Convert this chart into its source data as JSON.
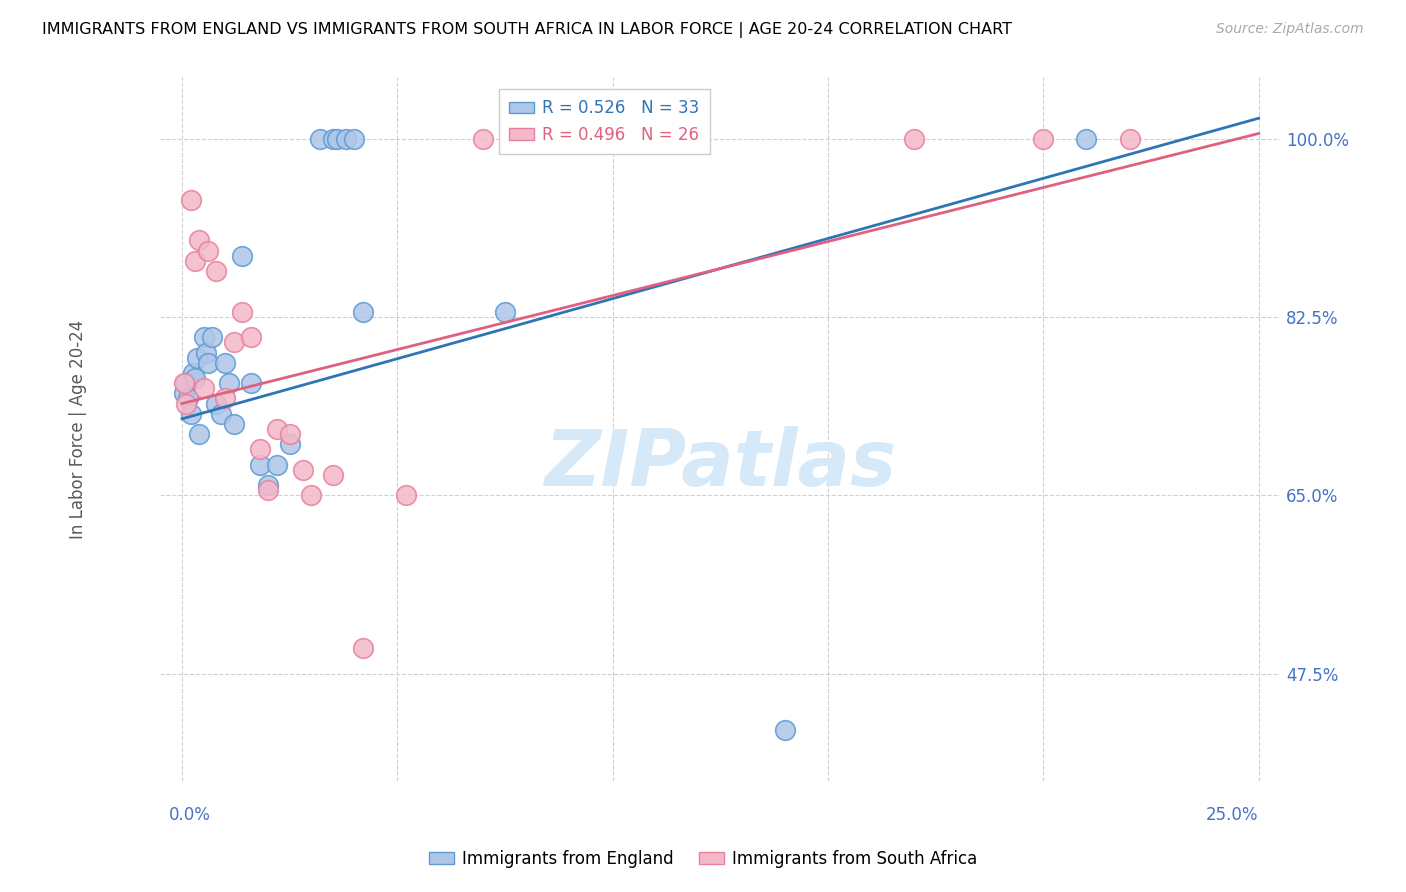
{
  "title": "IMMIGRANTS FROM ENGLAND VS IMMIGRANTS FROM SOUTH AFRICA IN LABOR FORCE | AGE 20-24 CORRELATION CHART",
  "source": "Source: ZipAtlas.com",
  "ylabel": "In Labor Force | Age 20-24",
  "xlim": [
    0.0,
    25.0
  ],
  "ylim": [
    37.0,
    104.0
  ],
  "yticks": [
    47.5,
    65.0,
    82.5,
    100.0
  ],
  "ytick_labels": [
    "47.5%",
    "65.0%",
    "82.5%",
    "100.0%"
  ],
  "legend_england": "R = 0.526   N = 33",
  "legend_sa": "R = 0.496   N = 26",
  "color_england_fill": "#aec6e8",
  "color_sa_fill": "#f4b8c8",
  "color_england_edge": "#5b9bd5",
  "color_sa_edge": "#e87fa0",
  "color_england_line": "#2e75b6",
  "color_sa_line": "#e06080",
  "color_axis_labels": "#4472c4",
  "color_text_grey": "#595959",
  "watermark_color": "#d6e9f8",
  "england_x": [
    0.05,
    0.1,
    0.15,
    0.2,
    0.25,
    0.3,
    0.35,
    0.4,
    0.5,
    0.55,
    0.6,
    0.7,
    0.8,
    0.9,
    1.0,
    1.1,
    1.2,
    1.4,
    1.6,
    1.8,
    2.0,
    2.2,
    2.5,
    3.2,
    3.5,
    3.6,
    3.8,
    4.0,
    4.2,
    7.5,
    10.5,
    14.0,
    21.0
  ],
  "england_y": [
    75.0,
    76.0,
    74.5,
    73.0,
    77.0,
    76.5,
    78.5,
    71.0,
    80.5,
    79.0,
    78.0,
    80.5,
    74.0,
    73.0,
    78.0,
    76.0,
    72.0,
    88.5,
    76.0,
    68.0,
    66.0,
    68.0,
    70.0,
    100.0,
    100.0,
    100.0,
    100.0,
    100.0,
    83.0,
    83.0,
    100.0,
    42.0,
    100.0
  ],
  "sa_x": [
    0.05,
    0.1,
    0.2,
    0.3,
    0.4,
    0.5,
    0.6,
    0.8,
    1.0,
    1.2,
    1.4,
    1.6,
    1.8,
    2.0,
    2.2,
    2.5,
    2.8,
    3.0,
    3.5,
    4.2,
    5.2,
    7.0,
    8.0,
    17.0,
    20.0,
    22.0
  ],
  "sa_y": [
    76.0,
    74.0,
    94.0,
    88.0,
    90.0,
    75.5,
    89.0,
    87.0,
    74.5,
    80.0,
    83.0,
    80.5,
    69.5,
    65.5,
    71.5,
    71.0,
    67.5,
    65.0,
    67.0,
    50.0,
    65.0,
    100.0,
    100.0,
    100.0,
    100.0,
    100.0
  ],
  "eng_line_x0": 0.0,
  "eng_line_y0": 72.5,
  "eng_line_x1": 25.0,
  "eng_line_y1": 102.0,
  "sa_line_x0": 0.0,
  "sa_line_y0": 74.0,
  "sa_line_x1": 25.0,
  "sa_line_y1": 100.5
}
